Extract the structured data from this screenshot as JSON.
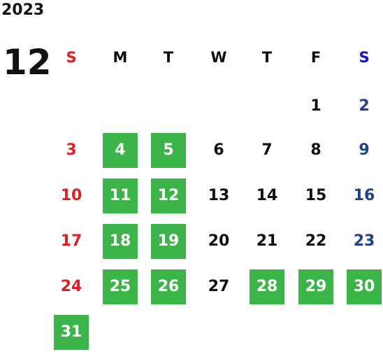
{
  "year": "2023",
  "month": "12",
  "weekdays": [
    "S",
    "M",
    "T",
    "W",
    "T",
    "F",
    "S"
  ],
  "weeks": [
    [
      null,
      null,
      null,
      null,
      null,
      {
        "day": 1,
        "highlight": false
      },
      {
        "day": 2,
        "highlight": false
      }
    ],
    [
      {
        "day": 3,
        "highlight": false
      },
      {
        "day": 4,
        "highlight": true
      },
      {
        "day": 5,
        "highlight": true
      },
      {
        "day": 6,
        "highlight": false
      },
      {
        "day": 7,
        "highlight": false
      },
      {
        "day": 8,
        "highlight": false
      },
      {
        "day": 9,
        "highlight": false
      }
    ],
    [
      {
        "day": 10,
        "highlight": false
      },
      {
        "day": 11,
        "highlight": true
      },
      {
        "day": 12,
        "highlight": true
      },
      {
        "day": 13,
        "highlight": false
      },
      {
        "day": 14,
        "highlight": false
      },
      {
        "day": 15,
        "highlight": false
      },
      {
        "day": 16,
        "highlight": false
      }
    ],
    [
      {
        "day": 17,
        "highlight": false
      },
      {
        "day": 18,
        "highlight": true
      },
      {
        "day": 19,
        "highlight": true
      },
      {
        "day": 20,
        "highlight": false
      },
      {
        "day": 21,
        "highlight": false
      },
      {
        "day": 22,
        "highlight": false
      },
      {
        "day": 23,
        "highlight": false
      }
    ],
    [
      {
        "day": 24,
        "highlight": false
      },
      {
        "day": 25,
        "highlight": true
      },
      {
        "day": 26,
        "highlight": true
      },
      {
        "day": 27,
        "highlight": false
      },
      {
        "day": 28,
        "highlight": true
      },
      {
        "day": 29,
        "highlight": true
      },
      {
        "day": 30,
        "highlight": true
      }
    ],
    [
      {
        "day": 31,
        "highlight": true
      },
      null,
      null,
      null,
      null,
      null,
      null
    ]
  ]
}
